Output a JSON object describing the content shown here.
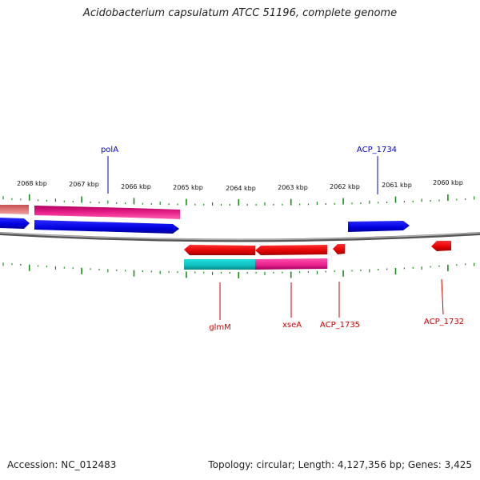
{
  "title": "Acidobacterium capsulatum ATCC 51196, complete genome",
  "footer": {
    "accession": "Accession: NC_012483",
    "summary": "Topology: circular; Length: 4,127,356 bp; Genes: 3,425"
  },
  "scale_labels": [
    "2068 kbp",
    "2067 kbp",
    "2066 kbp",
    "2065 kbp",
    "2064 kbp",
    "2063 kbp",
    "2062 kbp",
    "2061 kbp",
    "2060 kbp"
  ],
  "gene_labels": {
    "polA": "polA",
    "ACP_1734": "ACP_1734",
    "glmM": "glmM",
    "xseA": "xseA",
    "ACP_1735": "ACP_1735",
    "ACP_1732": "ACP_1732"
  },
  "colors": {
    "forward_gene": "#0000e0",
    "reverse_gene": "#e00000",
    "forward_label": "#0000cc",
    "reverse_label": "#cc0000",
    "pink_feature": "#e8208a",
    "salmon_feature": "#e07878",
    "cyan_feature": "#10c0c0",
    "backbone": "#888888",
    "tick": "#1a8a1a"
  }
}
